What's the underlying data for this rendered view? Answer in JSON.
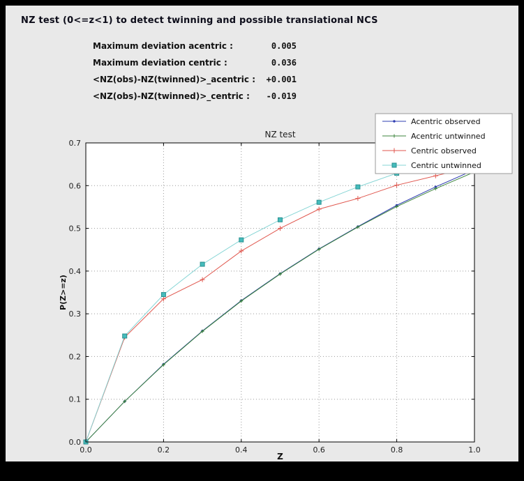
{
  "window": {
    "frame_color": "#000000",
    "panel_color": "#e9e9e9"
  },
  "header": {
    "title": "NZ test (0<=z<1) to detect twinning and possible translational NCS"
  },
  "stats": {
    "rows": [
      {
        "label": "Maximum deviation acentric :",
        "value": "0.005"
      },
      {
        "label": "Maximum deviation centric :",
        "value": "0.036"
      },
      {
        "label": "<NZ(obs)-NZ(twinned)>_acentric :",
        "value": "+0.001"
      },
      {
        "label": "<NZ(obs)-NZ(twinned)>_centric :",
        "value": "-0.019"
      }
    ]
  },
  "chart_data": {
    "type": "line",
    "title": "NZ test",
    "xlabel": "Z",
    "ylabel": "P(Z>=z)",
    "xlim": [
      0.0,
      1.0
    ],
    "ylim": [
      0.0,
      0.7
    ],
    "xticks": [
      0.0,
      0.2,
      0.4,
      0.6,
      0.8,
      1.0
    ],
    "yticks": [
      0.0,
      0.1,
      0.2,
      0.3,
      0.4,
      0.5,
      0.6,
      0.7
    ],
    "grid": true,
    "grid_style": "dotted",
    "grid_color": "#999999",
    "plot_bg": "#ffffff",
    "legend_position": "top-right",
    "x": [
      0.0,
      0.1,
      0.2,
      0.3,
      0.4,
      0.5,
      0.6,
      0.7,
      0.8,
      0.9,
      1.0
    ],
    "series": [
      {
        "name": "Acentric observed",
        "color": "#2e3cb0",
        "marker": "dot",
        "values": [
          0.0,
          0.095,
          0.182,
          0.26,
          0.331,
          0.394,
          0.452,
          0.504,
          0.554,
          0.597,
          0.637
        ]
      },
      {
        "name": "Acentric untwinned",
        "color": "#3d853d",
        "marker": "plus-small",
        "values": [
          0.0,
          0.095,
          0.181,
          0.259,
          0.33,
          0.393,
          0.451,
          0.503,
          0.551,
          0.593,
          0.632
        ]
      },
      {
        "name": "Centric observed",
        "color": "#e0564d",
        "marker": "plus",
        "values": [
          0.0,
          0.245,
          0.335,
          0.38,
          0.447,
          0.5,
          0.545,
          0.57,
          0.601,
          0.623,
          0.645
        ]
      },
      {
        "name": "Centric untwinned",
        "color": "#86d5d5",
        "marker": "square",
        "marker_fill": "#45bcbc",
        "marker_edge": "#2a8f8f",
        "values": [
          0.0,
          0.248,
          0.345,
          0.416,
          0.473,
          0.52,
          0.561,
          0.597,
          0.629,
          0.657,
          0.683
        ]
      }
    ]
  }
}
